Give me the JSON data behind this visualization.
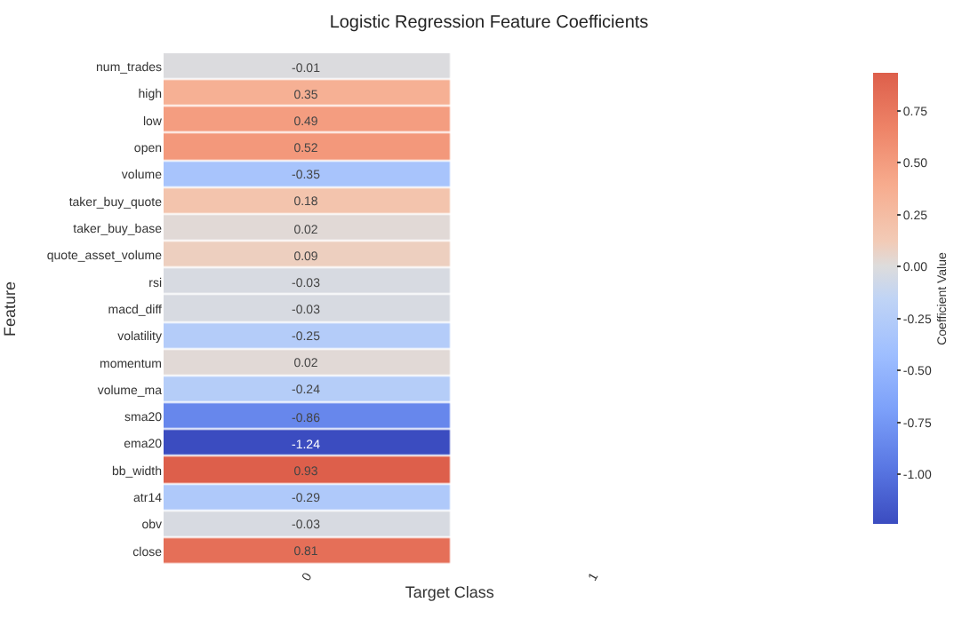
{
  "chart_data": {
    "type": "heatmap",
    "title": "Logistic Regression Feature Coefficients",
    "xlabel": "Target Class",
    "ylabel": "Feature",
    "clabel": "Coefficient Value",
    "categories": [
      "0",
      "1"
    ],
    "y_categories": [
      "num_trades",
      "high",
      "low",
      "open",
      "volume",
      "taker_buy_quote",
      "taker_buy_base",
      "quote_asset_volume",
      "rsi",
      "macd_diff",
      "volatility",
      "momentum",
      "volume_ma",
      "sma20",
      "ema20",
      "bb_width",
      "atr14",
      "obv",
      "close"
    ],
    "cells": [
      [
        -0.01,
        null
      ],
      [
        0.35,
        null
      ],
      [
        0.49,
        null
      ],
      [
        0.52,
        null
      ],
      [
        -0.35,
        null
      ],
      [
        0.18,
        null
      ],
      [
        0.02,
        null
      ],
      [
        0.09,
        null
      ],
      [
        -0.03,
        null
      ],
      [
        -0.03,
        null
      ],
      [
        -0.25,
        null
      ],
      [
        0.02,
        null
      ],
      [
        -0.24,
        null
      ],
      [
        -0.86,
        null
      ],
      [
        -1.24,
        null
      ],
      [
        0.93,
        null
      ],
      [
        -0.29,
        null
      ],
      [
        -0.03,
        null
      ],
      [
        0.81,
        null
      ]
    ],
    "clim": [
      -1.24,
      0.93
    ],
    "cticks": [
      {
        "value": -1.0,
        "label": "-1.00"
      },
      {
        "value": -0.75,
        "label": "-0.75"
      },
      {
        "value": -0.5,
        "label": "-0.50"
      },
      {
        "value": -0.25,
        "label": "-0.25"
      },
      {
        "value": 0.0,
        "label": "0.00"
      },
      {
        "value": 0.25,
        "label": "0.25"
      },
      {
        "value": 0.5,
        "label": "0.50"
      },
      {
        "value": 0.75,
        "label": "0.75"
      }
    ],
    "data_labels": true
  }
}
